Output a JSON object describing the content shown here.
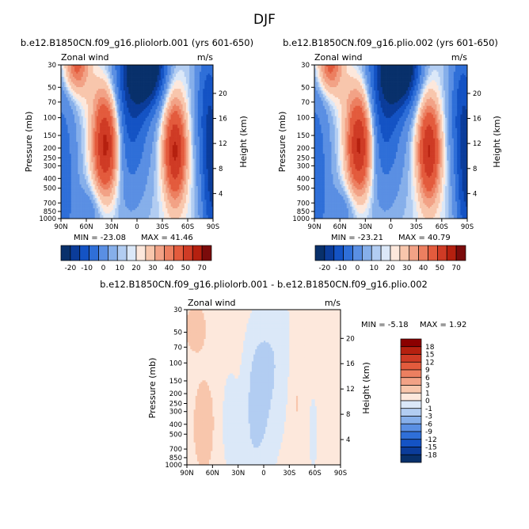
{
  "figure": {
    "suptitle": "DJF"
  },
  "colors": {
    "panel_levels_fill": [
      "#08306b",
      "#0b3c9a",
      "#1453c4",
      "#2f6fd8",
      "#5a8fe3",
      "#86afea",
      "#b2cdf2",
      "#dbe8f8",
      "#fde8dc",
      "#f8c6ac",
      "#f2a286",
      "#ec7f60",
      "#e35b3d",
      "#cf3b25",
      "#b5200f",
      "#7b0b0b"
    ],
    "diff_levels_fill": [
      "#08306b",
      "#0b3c9a",
      "#1453c4",
      "#2f6fd8",
      "#5a8fe3",
      "#86afea",
      "#b2cdf2",
      "#dbe8f8",
      "#fde8dc",
      "#f8c6ac",
      "#f2a286",
      "#ec7f60",
      "#e35b3d",
      "#cf3b25",
      "#b5200f",
      "#8b0000"
    ]
  },
  "chart_data": [
    {
      "type": "heatmap",
      "title": "b.e12.B1850CN.f09_g16.pliolorb.001 (yrs 601-650)",
      "left_label": "Zonal wind",
      "units": "m/s",
      "ylabel": "Pressure (mb)",
      "ylabel_right": "Height (km)",
      "x_ticks": [
        "90N",
        "60N",
        "30N",
        "0",
        "30S",
        "60S",
        "90S"
      ],
      "y_ticks": [
        "30",
        "50",
        "70",
        "100",
        "150",
        "200",
        "250",
        "300",
        "400",
        "500",
        "700",
        "850",
        "1000"
      ],
      "height_ticks": [
        "20",
        "16",
        "12",
        "8",
        "4"
      ],
      "min_label": "MIN = -23.08",
      "max_label": "MAX = 41.46",
      "min": -23.08,
      "max": 41.46,
      "colorbar_labels": [
        "-20",
        "-10",
        "0",
        "10",
        "20",
        "30",
        "40",
        "50",
        "70"
      ],
      "colorbar_levels": [
        -25,
        -20,
        -15,
        -10,
        -5,
        -2,
        0,
        2,
        5,
        10,
        15,
        20,
        30,
        40,
        50,
        60,
        70
      ]
    },
    {
      "type": "heatmap",
      "title": "b.e12.B1850CN.f09_g16.plio.002 (yrs 601-650)",
      "left_label": "Zonal wind",
      "units": "m/s",
      "ylabel": "Pressure (mb)",
      "ylabel_right": "Height (km)",
      "x_ticks": [
        "90N",
        "60N",
        "30N",
        "0",
        "30S",
        "60S",
        "90S"
      ],
      "y_ticks": [
        "30",
        "50",
        "70",
        "100",
        "150",
        "200",
        "250",
        "300",
        "400",
        "500",
        "700",
        "850",
        "1000"
      ],
      "height_ticks": [
        "20",
        "16",
        "12",
        "8",
        "4"
      ],
      "min_label": "MIN = -23.21",
      "max_label": "MAX = 40.79",
      "min": -23.21,
      "max": 40.79,
      "colorbar_labels": [
        "-20",
        "-10",
        "0",
        "10",
        "20",
        "30",
        "40",
        "50",
        "70"
      ],
      "colorbar_levels": [
        -25,
        -20,
        -15,
        -10,
        -5,
        -2,
        0,
        2,
        5,
        10,
        15,
        20,
        30,
        40,
        50,
        60,
        70
      ]
    },
    {
      "type": "heatmap",
      "title": "b.e12.B1850CN.f09_g16.pliolorb.001 - b.e12.B1850CN.f09_g16.plio.002",
      "left_label": "Zonal wind",
      "units": "m/s",
      "ylabel": "Pressure (mb)",
      "ylabel_right": "Height (km)",
      "x_ticks": [
        "90N",
        "60N",
        "30N",
        "0",
        "30S",
        "60S",
        "90S"
      ],
      "y_ticks": [
        "30",
        "50",
        "70",
        "100",
        "150",
        "200",
        "250",
        "300",
        "400",
        "500",
        "700",
        "850",
        "1000"
      ],
      "height_ticks": [
        "20",
        "16",
        "12",
        "8",
        "4"
      ],
      "min_label": "MIN = -5.18",
      "max_label": "MAX = 1.92",
      "min": -5.18,
      "max": 1.92,
      "colorbar_labels": [
        "18",
        "15",
        "12",
        "9",
        "6",
        "3",
        "1",
        "0",
        "-1",
        "-3",
        "-6",
        "-9",
        "-12",
        "-15",
        "-18"
      ]
    }
  ]
}
